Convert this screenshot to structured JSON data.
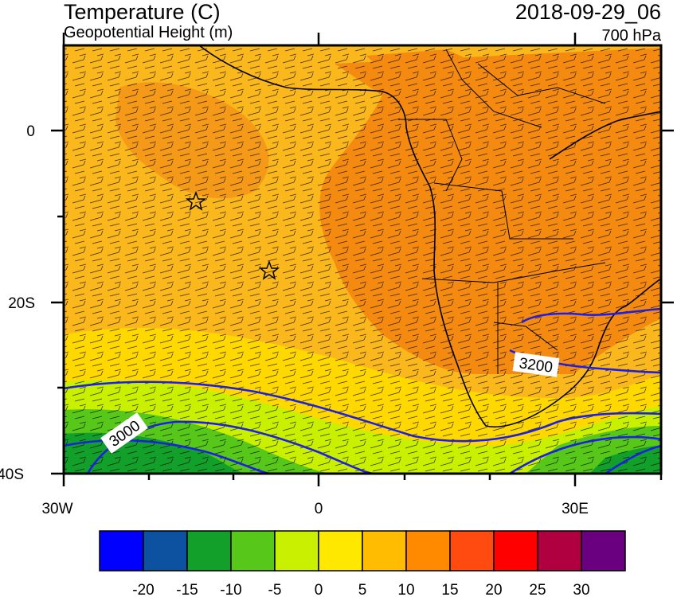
{
  "header": {
    "title": "Temperature (C)",
    "subtitle": "Geopotential Height (m)",
    "datetime": "2018-09-29_06",
    "level": "700 hPa"
  },
  "map": {
    "lon_range": [
      -30,
      40
    ],
    "lat_range": [
      -40,
      10
    ],
    "x_ticks": [
      {
        "value": -30,
        "label": "30W"
      },
      {
        "value": 0,
        "label": "0"
      },
      {
        "value": 30,
        "label": "30E"
      }
    ],
    "y_ticks": [
      {
        "value": 0,
        "label": "0"
      },
      {
        "value": -20,
        "label": "20S"
      },
      {
        "value": -40,
        "label": "40S"
      }
    ],
    "contour_labels": [
      {
        "label": "3200"
      },
      {
        "label": "3000"
      }
    ],
    "markers": [
      "star-marker",
      "star-marker"
    ]
  },
  "colorbar": {
    "colors": [
      "#0000ff",
      "#0d52a0",
      "#12a02a",
      "#57c81a",
      "#c8f000",
      "#ffe800",
      "#ffbc00",
      "#ff8a00",
      "#ff4a10",
      "#ff0000",
      "#b00040",
      "#6a0080"
    ],
    "labels": [
      "-20",
      "-15",
      "-10",
      "-5",
      "0",
      "5",
      "10",
      "15",
      "20",
      "25",
      "30"
    ]
  },
  "colors": {
    "contour": "#1e1ee6",
    "land_warm": "#f58a10",
    "ocean_base": "#fbb81c"
  }
}
